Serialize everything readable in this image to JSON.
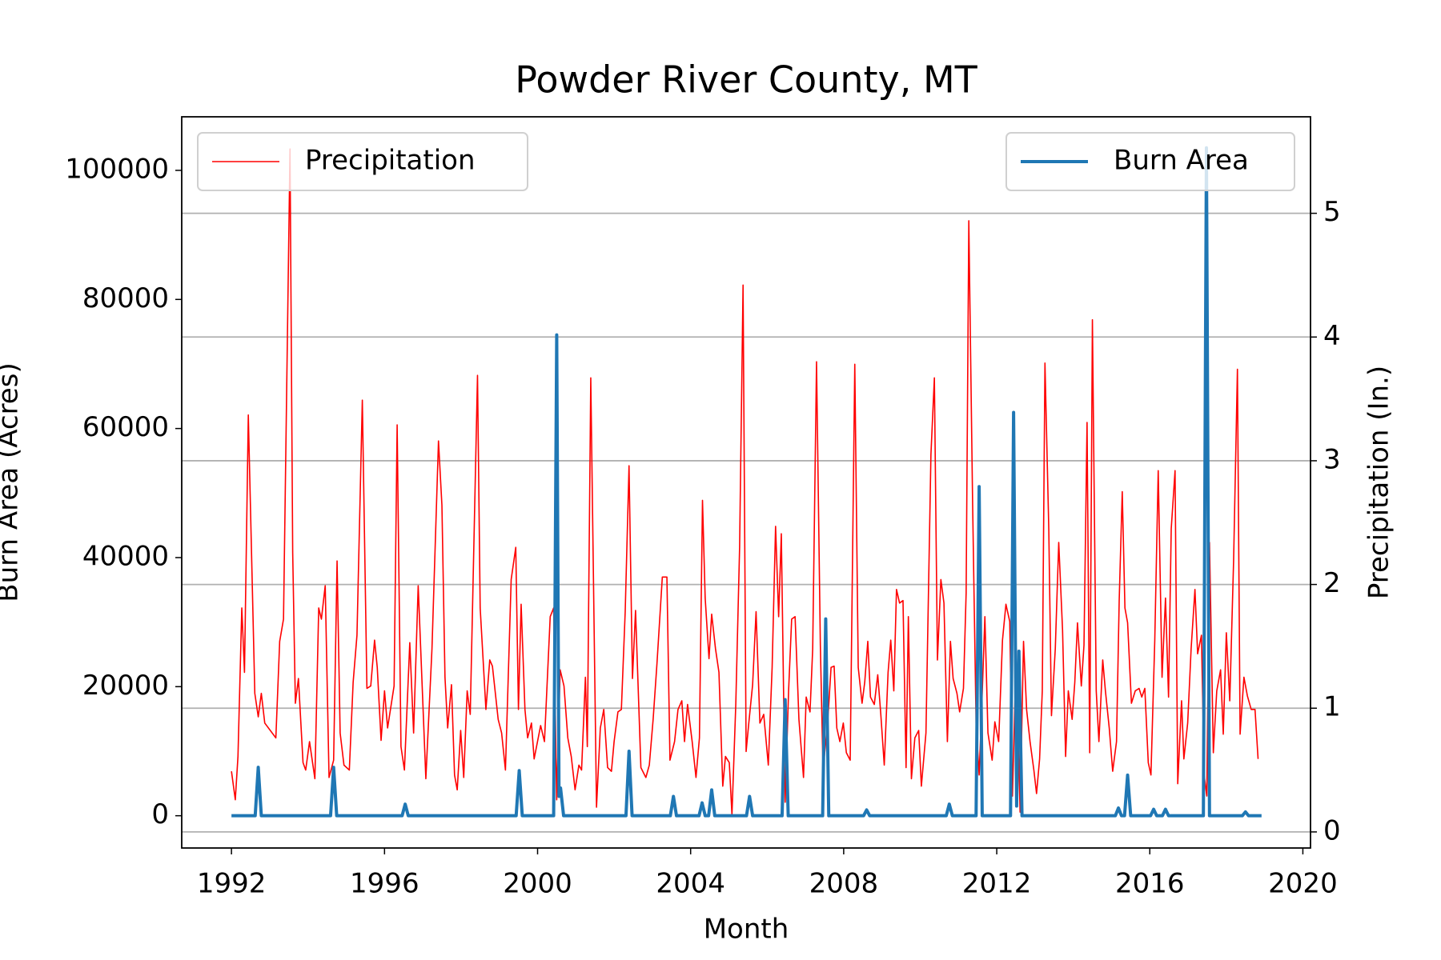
{
  "chart_data": {
    "type": "line",
    "title": "Powder River County, MT",
    "xlabel": "Month",
    "ylabel": "Burn Area (Acres)",
    "y2label": "Precipitation (In.)",
    "xlim": [
      1990.7,
      2020.2
    ],
    "xticks": [
      1992,
      1996,
      2000,
      2004,
      2008,
      2012,
      2016,
      2020
    ],
    "ylim": [
      -5000,
      108300
    ],
    "yticks": [
      0,
      20000,
      40000,
      60000,
      80000,
      100000
    ],
    "y2lim": [
      -0.13,
      5.78
    ],
    "y2ticks": [
      0,
      1,
      2,
      3,
      4,
      5
    ],
    "grid": "y2",
    "series": [
      {
        "name": "Precipitation",
        "color": "#ff0000",
        "axis": "y2",
        "legend": "upper left",
        "x": [
          1992.0,
          1992.1,
          1992.17,
          1992.27,
          1992.34,
          1992.44,
          1992.61,
          1992.7,
          1992.78,
          1992.87,
          1993.16,
          1993.26,
          1993.36,
          1993.53,
          1993.6,
          1993.67,
          1993.75,
          1993.87,
          1993.94,
          1994.04,
          1994.18,
          1994.28,
          1994.35,
          1994.45,
          1994.55,
          1994.67,
          1994.76,
          1994.84,
          1994.94,
          1995.08,
          1995.18,
          1995.28,
          1995.42,
          1995.54,
          1995.64,
          1995.74,
          1995.81,
          1995.91,
          1996.0,
          1996.08,
          1996.25,
          1996.33,
          1996.43,
          1996.52,
          1996.66,
          1996.76,
          1996.88,
          1997.08,
          1997.24,
          1997.41,
          1997.5,
          1997.58,
          1997.65,
          1997.75,
          1997.83,
          1997.9,
          1997.99,
          1998.07,
          1998.16,
          1998.24,
          1998.43,
          1998.5,
          1998.65,
          1998.75,
          1998.82,
          1998.97,
          1999.06,
          1999.16,
          1999.31,
          1999.43,
          1999.5,
          1999.57,
          1999.67,
          1999.74,
          1999.84,
          1999.91,
          2000.08,
          2000.18,
          2000.33,
          2000.42,
          2000.5,
          2000.59,
          2000.69,
          2000.79,
          2000.88,
          2000.98,
          2001.08,
          2001.15,
          2001.25,
          2001.3,
          2001.39,
          2001.54,
          2001.64,
          2001.73,
          2001.83,
          2001.93,
          2002.0,
          2002.1,
          2002.19,
          2002.29,
          2002.39,
          2002.48,
          2002.56,
          2002.7,
          2002.83,
          2002.92,
          2003.02,
          2003.12,
          2003.26,
          2003.38,
          2003.46,
          2003.58,
          2003.67,
          2003.77,
          2003.84,
          2003.92,
          2004.04,
          2004.14,
          2004.23,
          2004.31,
          2004.38,
          2004.48,
          2004.55,
          2004.65,
          2004.74,
          2004.84,
          2004.91,
          2005.01,
          2005.08,
          2005.18,
          2005.28,
          2005.37,
          2005.45,
          2005.52,
          2005.62,
          2005.71,
          2005.81,
          2005.91,
          2006.03,
          2006.13,
          2006.22,
          2006.3,
          2006.37,
          2006.47,
          2006.56,
          2006.64,
          2006.73,
          2006.83,
          2006.95,
          2007.02,
          2007.12,
          2007.19,
          2007.29,
          2007.39,
          2007.46,
          2007.58,
          2007.67,
          2007.75,
          2007.82,
          2007.9,
          2007.99,
          2008.07,
          2008.17,
          2008.29,
          2008.38,
          2008.48,
          2008.55,
          2008.63,
          2008.7,
          2008.8,
          2008.89,
          2008.97,
          2009.06,
          2009.16,
          2009.23,
          2009.31,
          2009.38,
          2009.46,
          2009.55,
          2009.63,
          2009.69,
          2009.77,
          2009.86,
          2009.96,
          2010.03,
          2010.15,
          2010.28,
          2010.37,
          2010.45,
          2010.54,
          2010.62,
          2010.71,
          2010.79,
          2010.86,
          2010.96,
          2011.03,
          2011.13,
          2011.2,
          2011.27,
          2011.37,
          2011.46,
          2011.54,
          2011.61,
          2011.69,
          2011.77,
          2011.88,
          2011.95,
          2012.05,
          2012.15,
          2012.24,
          2012.34,
          2012.41,
          2012.51,
          2012.61,
          2012.7,
          2012.78,
          2012.87,
          2012.97,
          2013.04,
          2013.12,
          2013.19,
          2013.26,
          2013.36,
          2013.43,
          2013.53,
          2013.62,
          2013.72,
          2013.8,
          2013.87,
          2013.97,
          2014.04,
          2014.11,
          2014.21,
          2014.28,
          2014.36,
          2014.43,
          2014.5,
          2014.6,
          2014.67,
          2014.77,
          2014.84,
          2014.94,
          2015.03,
          2015.13,
          2015.2,
          2015.28,
          2015.35,
          2015.42,
          2015.52,
          2015.62,
          2015.72,
          2015.79,
          2015.87,
          2015.96,
          2016.03,
          2016.13,
          2016.22,
          2016.32,
          2016.41,
          2016.49,
          2016.56,
          2016.66,
          2016.73,
          2016.83,
          2016.89,
          2016.99,
          2017.08,
          2017.18,
          2017.25,
          2017.35,
          2017.42,
          2017.49,
          2017.56,
          2017.66,
          2017.75,
          2017.85,
          2017.92,
          2018.0,
          2018.09,
          2018.19,
          2018.29,
          2018.36,
          2018.46,
          2018.55,
          2018.65,
          2018.75,
          2018.83
        ],
        "values": [
          0.49,
          0.26,
          0.61,
          1.81,
          1.29,
          3.37,
          1.12,
          0.93,
          1.12,
          0.88,
          0.76,
          1.54,
          1.72,
          5.52,
          2.26,
          1.04,
          1.24,
          0.56,
          0.5,
          0.73,
          0.43,
          1.81,
          1.72,
          1.99,
          0.44,
          0.58,
          2.19,
          0.8,
          0.54,
          0.5,
          1.21,
          1.59,
          3.49,
          1.16,
          1.18,
          1.55,
          1.33,
          0.74,
          1.14,
          0.84,
          1.18,
          3.29,
          0.69,
          0.5,
          1.53,
          0.8,
          1.99,
          0.43,
          1.48,
          3.16,
          2.64,
          1.25,
          0.84,
          1.19,
          0.46,
          0.34,
          0.82,
          0.44,
          1.14,
          0.95,
          3.69,
          1.81,
          0.99,
          1.39,
          1.34,
          0.91,
          0.8,
          0.5,
          2.04,
          2.3,
          0.99,
          1.84,
          0.99,
          0.76,
          0.88,
          0.59,
          0.86,
          0.73,
          1.74,
          1.81,
          0.26,
          1.31,
          1.18,
          0.76,
          0.61,
          0.34,
          0.54,
          0.5,
          1.25,
          0.69,
          3.67,
          0.2,
          0.84,
          0.99,
          0.52,
          0.49,
          0.73,
          0.97,
          0.99,
          1.78,
          2.96,
          1.24,
          1.79,
          0.52,
          0.44,
          0.54,
          0.91,
          1.36,
          2.06,
          2.06,
          0.58,
          0.73,
          0.99,
          1.06,
          0.73,
          1.03,
          0.73,
          0.44,
          0.76,
          2.68,
          1.89,
          1.4,
          1.76,
          1.48,
          1.29,
          0.37,
          0.61,
          0.56,
          0.14,
          1.03,
          2.3,
          4.42,
          0.65,
          0.88,
          1.19,
          1.78,
          0.88,
          0.95,
          0.54,
          1.33,
          2.47,
          1.74,
          2.41,
          0.24,
          1.14,
          1.72,
          1.74,
          0.91,
          0.44,
          1.09,
          0.97,
          1.48,
          3.8,
          1.51,
          0.5,
          0.88,
          1.33,
          1.34,
          0.84,
          0.73,
          0.88,
          0.64,
          0.58,
          3.78,
          1.33,
          1.04,
          1.21,
          1.54,
          1.09,
          1.03,
          1.27,
          0.95,
          0.54,
          1.29,
          1.55,
          1.14,
          1.96,
          1.85,
          1.87,
          0.52,
          1.74,
          0.43,
          0.76,
          0.82,
          0.37,
          0.8,
          3.05,
          3.67,
          1.39,
          2.04,
          1.85,
          0.73,
          1.54,
          1.24,
          1.12,
          0.97,
          1.16,
          1.93,
          4.94,
          2.64,
          0.88,
          0.46,
          1.03,
          1.74,
          0.8,
          0.58,
          0.89,
          0.73,
          1.55,
          1.84,
          1.7,
          0.29,
          1.48,
          0.16,
          1.54,
          0.99,
          0.73,
          0.5,
          0.31,
          0.59,
          1.14,
          3.79,
          2.45,
          0.94,
          1.48,
          2.34,
          1.63,
          0.61,
          1.14,
          0.91,
          1.21,
          1.69,
          1.18,
          1.51,
          3.31,
          0.64,
          4.14,
          1.14,
          0.73,
          1.39,
          1.14,
          0.84,
          0.49,
          0.73,
          1.87,
          2.75,
          1.81,
          1.69,
          1.04,
          1.14,
          1.16,
          1.09,
          1.16,
          0.56,
          0.46,
          1.55,
          2.92,
          1.25,
          1.89,
          1.09,
          2.45,
          2.92,
          0.39,
          1.06,
          0.59,
          0.88,
          1.48,
          1.96,
          1.44,
          1.59,
          0.46,
          0.29,
          2.34,
          0.64,
          1.14,
          1.31,
          0.79,
          1.61,
          1.06,
          2.19,
          3.74,
          0.79,
          1.25,
          1.1,
          0.99,
          0.99,
          0.59
        ]
      },
      {
        "name": "Burn Area",
        "color": "#1f77b4",
        "legend": "upper right",
        "x": [
          1992.0,
          1992.62,
          1992.7,
          1992.78,
          1994.59,
          1994.67,
          1994.75,
          1996.46,
          1996.54,
          1996.62,
          1999.44,
          1999.52,
          1999.6,
          2000.42,
          2000.5,
          2000.56,
          2000.6,
          2000.68,
          2002.31,
          2002.39,
          2002.47,
          2003.47,
          2003.55,
          2003.63,
          2004.22,
          2004.3,
          2004.38,
          2004.47,
          2004.55,
          2004.63,
          2005.46,
          2005.54,
          2005.62,
          2006.39,
          2006.47,
          2006.55,
          2007.45,
          2007.53,
          2007.61,
          2008.52,
          2008.6,
          2008.68,
          2010.68,
          2010.76,
          2010.84,
          2011.46,
          2011.54,
          2011.62,
          2012.36,
          2012.44,
          2012.52,
          2012.58,
          2012.66,
          2015.1,
          2015.18,
          2015.26,
          2015.34,
          2015.42,
          2015.5,
          2016.02,
          2016.1,
          2016.18,
          2016.33,
          2016.41,
          2016.49,
          2017.4,
          2017.48,
          2017.56,
          2018.42,
          2018.5,
          2018.58,
          2018.92
        ],
        "values": [
          0,
          0,
          7500,
          0,
          0,
          7500,
          0,
          0,
          1800,
          0,
          0,
          7000,
          0,
          0,
          74500,
          3000,
          4300,
          0,
          0,
          10000,
          0,
          0,
          3000,
          0,
          0,
          2000,
          0,
          0,
          4000,
          0,
          0,
          3000,
          0,
          0,
          18000,
          0,
          0,
          30500,
          0,
          0,
          900,
          0,
          0,
          1800,
          0,
          0,
          51000,
          0,
          0,
          62500,
          1500,
          25500,
          0,
          0,
          1200,
          0,
          0,
          6300,
          0,
          0,
          1000,
          0,
          0,
          1000,
          0,
          0,
          103500,
          0,
          0,
          600,
          0,
          0
        ]
      }
    ]
  }
}
